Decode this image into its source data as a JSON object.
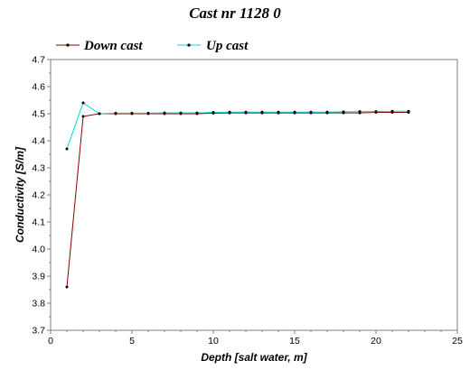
{
  "chart_data": {
    "type": "line",
    "title": "Cast nr 1128 0",
    "xlabel": "Depth [salt water, m]",
    "ylabel": "Conductivity [S/m]",
    "xlim": [
      0,
      25
    ],
    "ylim": [
      3.7,
      4.7
    ],
    "xticks": [
      "0",
      "5",
      "10",
      "15",
      "20",
      "25"
    ],
    "yticks": [
      "3.7",
      "3.8",
      "3.9",
      "4.0",
      "4.1",
      "4.2",
      "4.3",
      "4.4",
      "4.5",
      "4.6",
      "4.7"
    ],
    "grid": false,
    "legend": "top-left",
    "series": [
      {
        "name": "Down cast",
        "color": "#8b0000",
        "x": [
          1,
          2,
          3,
          4,
          5,
          6,
          7,
          8,
          9,
          10,
          11,
          12,
          13,
          14,
          15,
          16,
          17,
          18,
          19,
          20,
          21,
          22
        ],
        "y": [
          3.86,
          4.49,
          4.5,
          4.5,
          4.5,
          4.5,
          4.5,
          4.5,
          4.5,
          4.502,
          4.503,
          4.503,
          4.503,
          4.503,
          4.503,
          4.503,
          4.503,
          4.503,
          4.503,
          4.505,
          4.505,
          4.505
        ]
      },
      {
        "name": "Up cast",
        "color": "#00d8d8",
        "x": [
          1,
          2,
          3,
          4,
          5,
          6,
          7,
          8,
          9,
          10,
          11,
          12,
          13,
          14,
          15,
          16,
          17,
          18,
          19,
          20,
          21,
          22
        ],
        "y": [
          4.37,
          4.54,
          4.5,
          4.502,
          4.502,
          4.502,
          4.503,
          4.503,
          4.503,
          4.505,
          4.506,
          4.506,
          4.506,
          4.506,
          4.506,
          4.506,
          4.506,
          4.507,
          4.508,
          4.508,
          4.509,
          4.509
        ]
      }
    ]
  }
}
